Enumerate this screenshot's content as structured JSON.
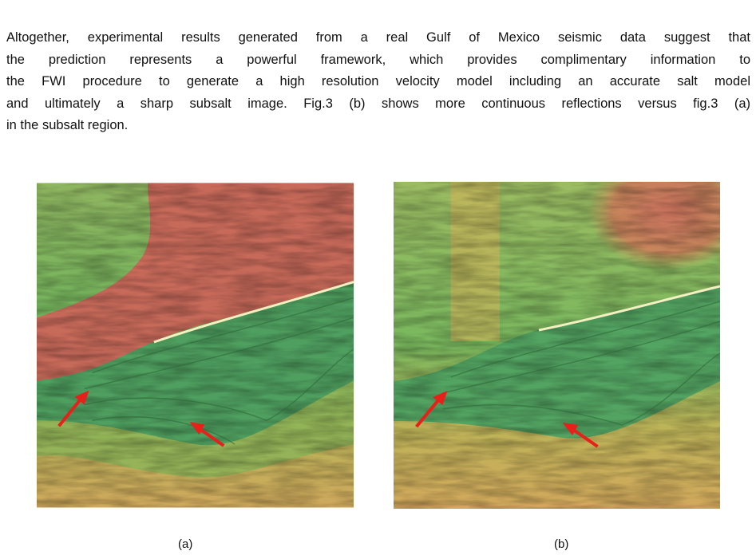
{
  "paragraph": {
    "lines": [
      "Altogether, experimental results generated from a real Gulf of Mexico seismic data suggest that",
      "the prediction represents a powerful framework, which provides complimentary information to",
      "the FWI procedure to generate a high resolution velocity model including an accurate salt model",
      "and ultimately a sharp subsalt image. Fig.3 (b) shows more continuous reflections versus fig.3 (a)",
      "in the subsalt region."
    ]
  },
  "figures": [
    {
      "caption": "(a)"
    },
    {
      "caption": "(b)"
    }
  ]
}
